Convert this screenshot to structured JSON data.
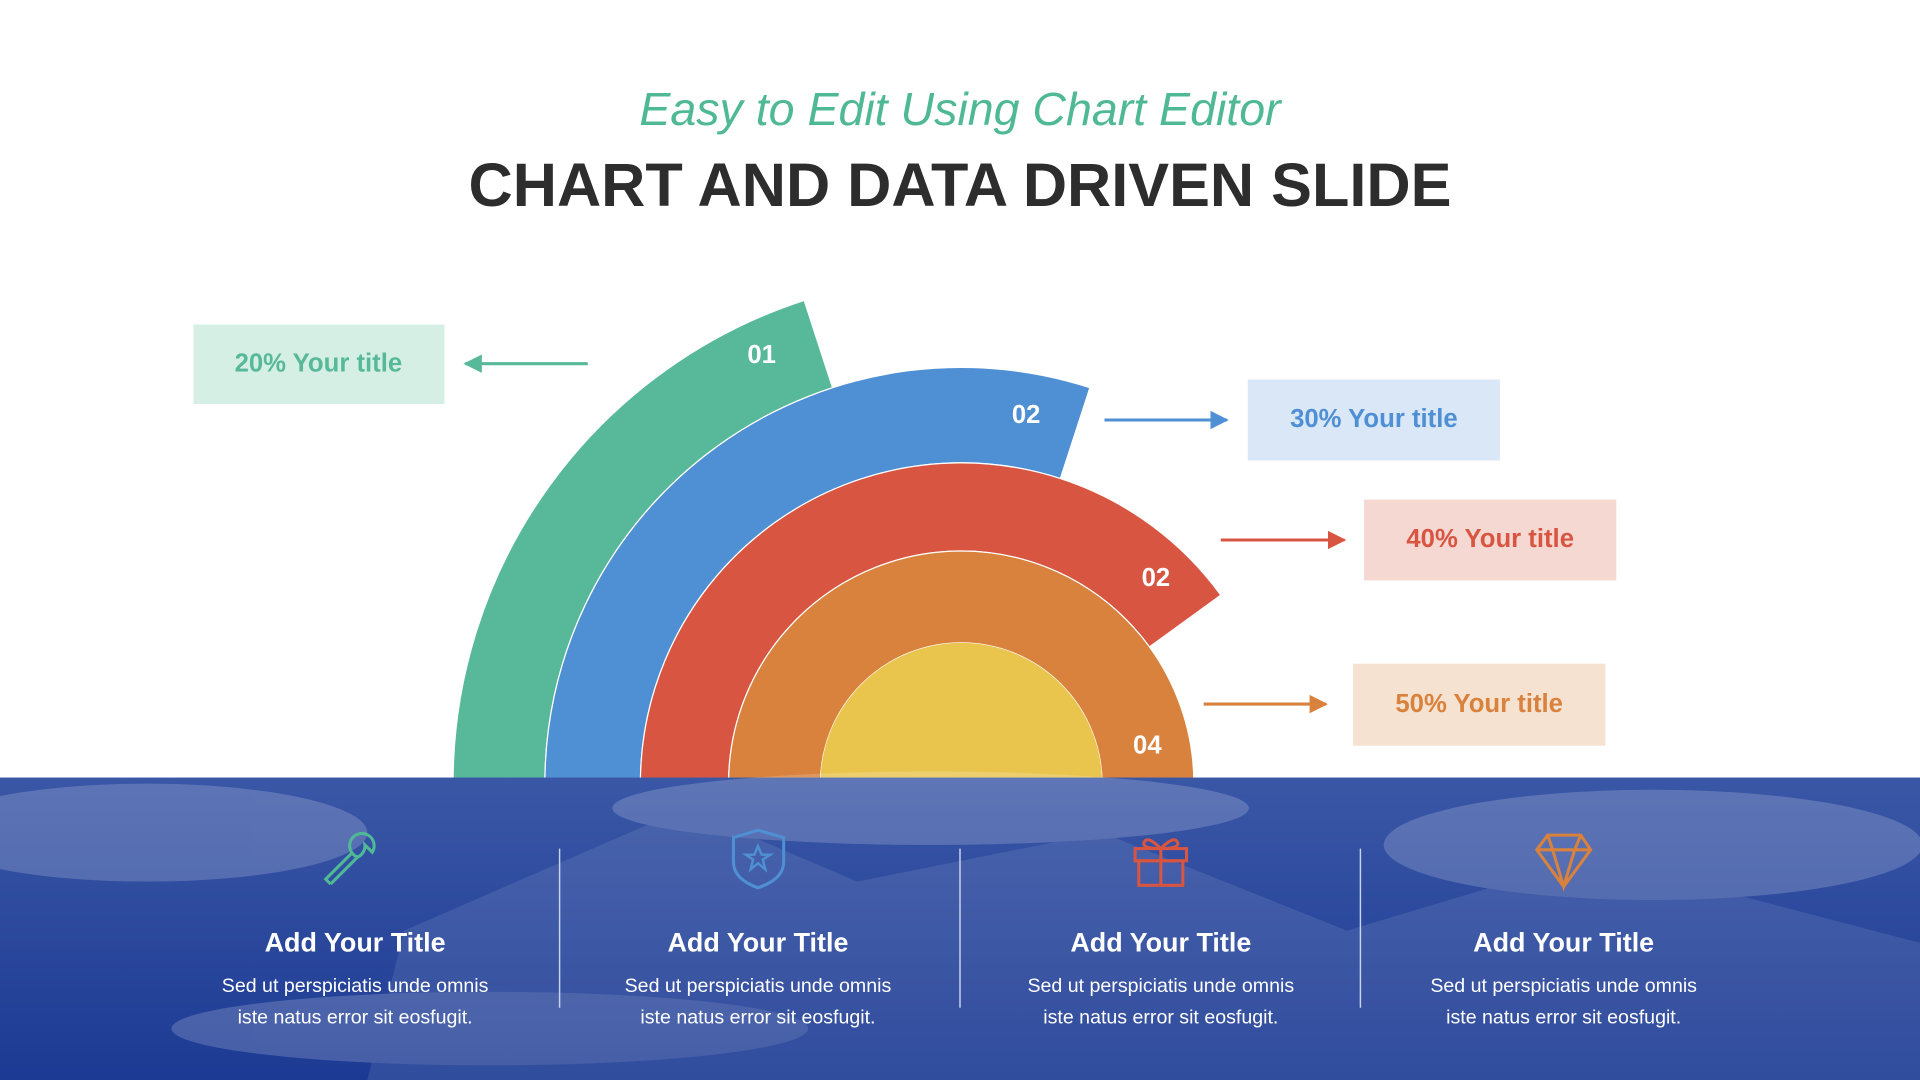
{
  "header": {
    "subtitle": "Easy to Edit Using Chart Editor",
    "title": "CHART AND DATA DRIVEN SLIDE"
  },
  "arcs": [
    {
      "number": "01",
      "label": "20% Your title"
    },
    {
      "number": "02",
      "label": "30% Your title"
    },
    {
      "number": "02",
      "label": "40% Your title"
    },
    {
      "number": "04",
      "label": "50% Your title"
    }
  ],
  "features": [
    {
      "title": "Add Your Title",
      "lines": [
        "Sed ut perspiciatis unde omnis",
        "iste natus error sit eosfugit."
      ]
    },
    {
      "title": "Add Your Title",
      "lines": [
        "Sed ut perspiciatis unde omnis",
        "iste natus error sit eosfugit."
      ]
    },
    {
      "title": "Add Your Title",
      "lines": [
        "Sed ut perspiciatis unde omnis",
        "iste natus error sit eosfugit."
      ]
    },
    {
      "title": "Add Your Title",
      "lines": [
        "Sed ut perspiciatis unde omnis",
        "iste natus error sit eosfugit."
      ]
    }
  ]
}
